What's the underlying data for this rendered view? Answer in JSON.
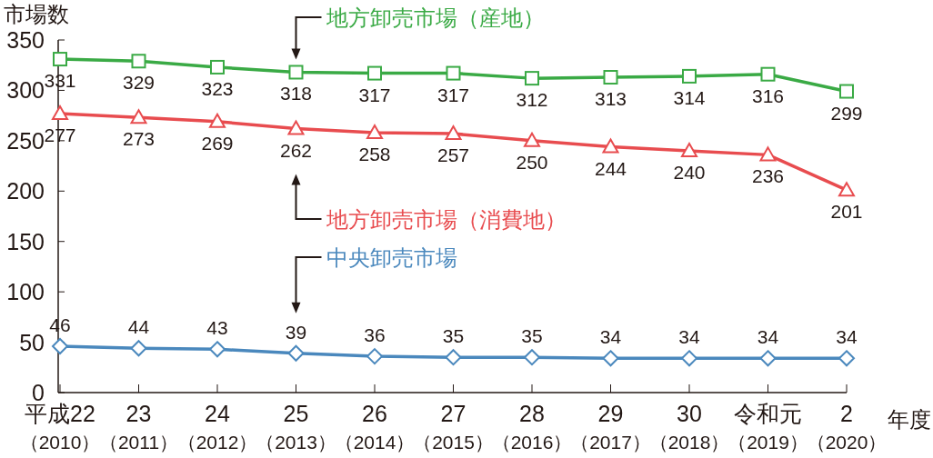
{
  "chart_data": {
    "type": "line",
    "ylabel": "市場数",
    "xlabel": "年度",
    "categories": [
      "平成22（2010）",
      "23（2011）",
      "24（2012）",
      "25（2013）",
      "26（2014）",
      "27（2015）",
      "28（2016）",
      "29（2017）",
      "30（2018）",
      "令和元（2019）",
      "2（2020）"
    ],
    "series": [
      {
        "name": "地方卸売市場（産地）",
        "color": "#3aaa45",
        "marker": "square",
        "values": [
          331,
          329,
          323,
          318,
          317,
          317,
          312,
          313,
          314,
          316,
          299
        ]
      },
      {
        "name": "地方卸売市場（消費地）",
        "color": "#e84c4f",
        "marker": "triangle",
        "values": [
          277,
          273,
          269,
          262,
          258,
          257,
          250,
          244,
          240,
          236,
          201
        ]
      },
      {
        "name": "中央卸売市場",
        "color": "#4a88bd",
        "marker": "diamond",
        "values": [
          46,
          44,
          43,
          39,
          36,
          35,
          35,
          34,
          34,
          34,
          34
        ]
      }
    ],
    "ylim": [
      0,
      350
    ],
    "yticks": [
      0,
      50,
      100,
      150,
      200,
      250,
      300,
      350
    ],
    "grid": false,
    "legend": false,
    "data_labels": true,
    "line_style": "solid"
  }
}
